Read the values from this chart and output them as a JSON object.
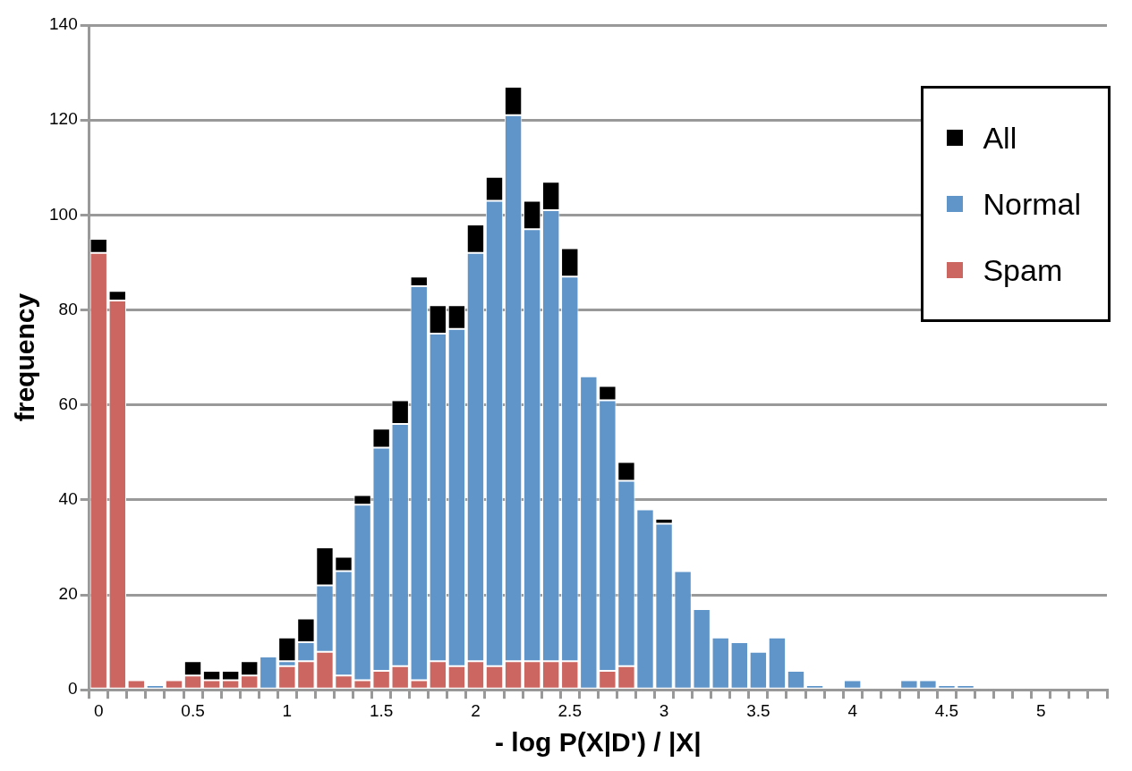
{
  "chart_data": {
    "type": "bar",
    "xlabel": "- log P(X|D') / |X|",
    "ylabel": "frequency",
    "categories": [
      "0",
      null,
      null,
      null,
      null,
      "0.5",
      null,
      null,
      null,
      null,
      "1",
      null,
      null,
      null,
      null,
      "1.5",
      null,
      null,
      null,
      null,
      "2",
      null,
      null,
      null,
      null,
      "2.5",
      null,
      null,
      null,
      null,
      "3",
      null,
      null,
      null,
      null,
      "3.5",
      null,
      null,
      null,
      null,
      "4",
      null,
      null,
      null,
      null,
      "4.5",
      null,
      null,
      null,
      null,
      "5",
      null,
      null,
      null
    ],
    "series": [
      {
        "name": "Spam",
        "color": "#cc6661",
        "values": [
          92,
          82,
          2,
          0,
          2,
          3,
          2,
          2,
          3,
          0,
          5,
          6,
          8,
          3,
          2,
          4,
          5,
          2,
          6,
          5,
          6,
          5,
          6,
          6,
          6,
          6,
          0,
          4,
          5,
          0,
          0,
          0,
          0,
          0,
          0,
          0,
          0,
          0,
          0,
          0,
          0,
          0,
          0,
          0,
          0,
          0,
          0,
          0,
          0,
          0,
          0,
          0,
          0,
          0
        ]
      },
      {
        "name": "Normal",
        "color": "#5f95c9",
        "values": [
          0,
          0,
          0,
          1,
          0,
          0,
          0,
          0,
          0,
          7,
          1,
          4,
          14,
          22,
          37,
          47,
          51,
          83,
          69,
          71,
          86,
          98,
          115,
          91,
          95,
          81,
          66,
          57,
          39,
          38,
          35,
          25,
          17,
          11,
          10,
          8,
          11,
          4,
          1,
          0,
          2,
          0,
          0,
          2,
          2,
          1,
          1,
          0,
          0,
          0,
          0,
          0,
          0,
          0
        ]
      },
      {
        "name": "All",
        "color": "#000000",
        "values": [
          3,
          2,
          0,
          0,
          0,
          3,
          2,
          2,
          3,
          0,
          5,
          5,
          8,
          3,
          2,
          4,
          5,
          2,
          6,
          5,
          6,
          5,
          6,
          6,
          6,
          6,
          0,
          3,
          4,
          0,
          1,
          0,
          0,
          0,
          0,
          0,
          0,
          0,
          0,
          0,
          0,
          0,
          0,
          0,
          0,
          0,
          0,
          0,
          0,
          0,
          0,
          0,
          0,
          0
        ]
      }
    ],
    "stacked": true,
    "ylim": [
      0,
      140
    ],
    "yticks": [
      0,
      20,
      40,
      60,
      80,
      100,
      120,
      140
    ],
    "grid": "y",
    "legend": "top right"
  }
}
